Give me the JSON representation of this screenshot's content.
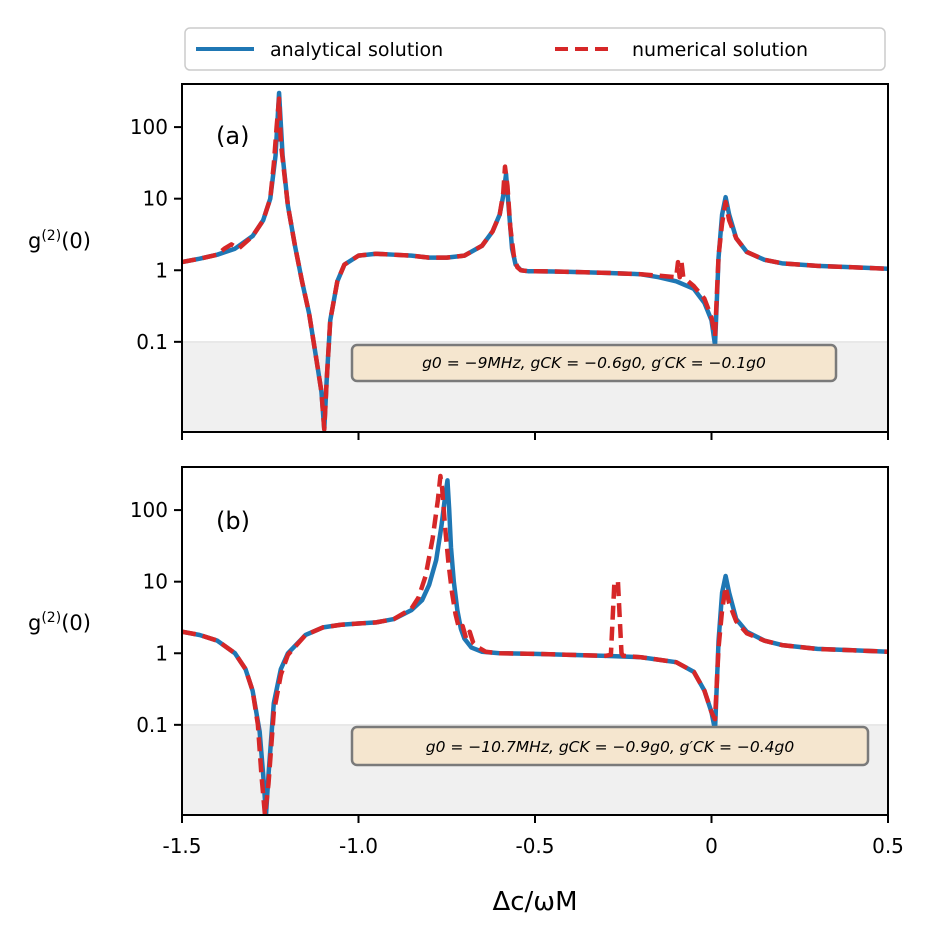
{
  "chart_data": {
    "type": "line",
    "xlabel": "Δc/ωM",
    "x_tick_labels": [
      "-1.5",
      "-1.0",
      "-0.5",
      "0",
      "0.5"
    ],
    "x_ticks": [
      -1.5,
      -1.0,
      -0.5,
      0.0,
      0.5
    ],
    "xlim": [
      -1.5,
      0.5
    ],
    "y_scale": "log",
    "ylim": [
      0.0055,
      400
    ],
    "y_ticks": [
      0.1,
      1,
      10,
      100
    ],
    "y_tick_labels": [
      "0.1",
      "1",
      "10",
      "100"
    ],
    "shaded_region_below": 0.1,
    "legend": [
      {
        "name": "analytical solution",
        "color": "#1f77b4",
        "style": "solid"
      },
      {
        "name": "numerical solution",
        "color": "#d62728",
        "style": "dashed"
      }
    ],
    "panels": [
      {
        "label": "(a)",
        "ylabel": "g(2)(0)",
        "annotation": "g0 = −9MHz, gCK = −0.6g0, g′CK = −0.1g0",
        "series": [
          {
            "name": "analytical solution",
            "x": [
              -1.5,
              -1.45,
              -1.4,
              -1.35,
              -1.3,
              -1.27,
              -1.25,
              -1.235,
              -1.225,
              -1.215,
              -1.2,
              -1.18,
              -1.16,
              -1.14,
              -1.12,
              -1.105,
              -1.097,
              -1.09,
              -1.08,
              -1.06,
              -1.04,
              -1.0,
              -0.95,
              -0.9,
              -0.85,
              -0.8,
              -0.75,
              -0.7,
              -0.65,
              -0.62,
              -0.6,
              -0.59,
              -0.582,
              -0.575,
              -0.565,
              -0.555,
              -0.54,
              -0.52,
              -0.5,
              -0.45,
              -0.4,
              -0.3,
              -0.2,
              -0.15,
              -0.1,
              -0.05,
              -0.02,
              0.0,
              0.01,
              0.02,
              0.03,
              0.04,
              0.05,
              0.07,
              0.1,
              0.15,
              0.2,
              0.3,
              0.4,
              0.5
            ],
            "y": [
              1.3,
              1.45,
              1.65,
              2.0,
              3.0,
              5.0,
              10.0,
              40.0,
              300.0,
              40.0,
              8.0,
              2.2,
              0.7,
              0.25,
              0.06,
              0.02,
              0.006,
              0.03,
              0.2,
              0.7,
              1.2,
              1.6,
              1.7,
              1.65,
              1.6,
              1.5,
              1.5,
              1.6,
              2.2,
              3.5,
              6.0,
              11.0,
              22.0,
              8.0,
              2.0,
              1.2,
              1.0,
              0.97,
              0.97,
              0.96,
              0.95,
              0.92,
              0.88,
              0.8,
              0.7,
              0.55,
              0.35,
              0.2,
              0.09,
              1.5,
              6.0,
              10.5,
              6.0,
              2.8,
              1.8,
              1.4,
              1.25,
              1.15,
              1.1,
              1.05
            ]
          },
          {
            "name": "numerical solution",
            "x": [
              -1.5,
              -1.45,
              -1.4,
              -1.38,
              -1.36,
              -1.34,
              -1.3,
              -1.27,
              -1.25,
              -1.24,
              -1.232,
              -1.225,
              -1.22,
              -1.2,
              -1.18,
              -1.16,
              -1.14,
              -1.12,
              -1.105,
              -1.097,
              -1.09,
              -1.08,
              -1.06,
              -1.04,
              -1.0,
              -0.95,
              -0.9,
              -0.85,
              -0.8,
              -0.75,
              -0.7,
              -0.65,
              -0.62,
              -0.6,
              -0.59,
              -0.585,
              -0.578,
              -0.57,
              -0.56,
              -0.55,
              -0.54,
              -0.52,
              -0.5,
              -0.45,
              -0.4,
              -0.3,
              -0.2,
              -0.1,
              -0.095,
              -0.09,
              -0.085,
              -0.08,
              -0.05,
              -0.02,
              0.0,
              0.01,
              0.02,
              0.03,
              0.04,
              0.05,
              0.07,
              0.1,
              0.15,
              0.2,
              0.3,
              0.4,
              0.5
            ],
            "y": [
              1.3,
              1.45,
              1.65,
              2.0,
              2.3,
              2.0,
              3.0,
              5.0,
              10.0,
              30.0,
              100.0,
              250.0,
              60.0,
              8.0,
              2.2,
              0.7,
              0.25,
              0.06,
              0.02,
              0.006,
              0.03,
              0.2,
              0.7,
              1.2,
              1.6,
              1.7,
              1.65,
              1.6,
              1.5,
              1.5,
              1.6,
              2.2,
              3.5,
              6.0,
              12.0,
              28.0,
              15.0,
              4.0,
              1.6,
              1.1,
              1.0,
              0.97,
              0.97,
              0.96,
              0.95,
              0.92,
              0.88,
              0.8,
              1.3,
              0.8,
              1.3,
              0.8,
              0.6,
              0.4,
              0.22,
              0.12,
              1.6,
              4.5,
              9.0,
              5.0,
              2.8,
              1.8,
              1.4,
              1.25,
              1.15,
              1.1,
              1.05
            ]
          }
        ]
      },
      {
        "label": "(b)",
        "ylabel": "g(2)(0)",
        "annotation": "g0 = −10.7MHz, gCK = −0.9g0, g′CK = −0.4g0",
        "series": [
          {
            "name": "analytical solution",
            "x": [
              -1.5,
              -1.45,
              -1.4,
              -1.35,
              -1.32,
              -1.3,
              -1.28,
              -1.27,
              -1.262,
              -1.255,
              -1.24,
              -1.22,
              -1.2,
              -1.15,
              -1.1,
              -1.05,
              -1.0,
              -0.95,
              -0.9,
              -0.85,
              -0.82,
              -0.8,
              -0.78,
              -0.765,
              -0.755,
              -0.748,
              -0.743,
              -0.738,
              -0.73,
              -0.72,
              -0.71,
              -0.7,
              -0.68,
              -0.65,
              -0.6,
              -0.5,
              -0.4,
              -0.3,
              -0.2,
              -0.1,
              -0.05,
              -0.02,
              0.0,
              0.01,
              0.02,
              0.03,
              0.04,
              0.05,
              0.07,
              0.1,
              0.15,
              0.2,
              0.3,
              0.4,
              0.5
            ],
            "y": [
              2.0,
              1.8,
              1.5,
              1.0,
              0.6,
              0.3,
              0.08,
              0.02,
              0.0055,
              0.02,
              0.2,
              0.6,
              1.0,
              1.8,
              2.3,
              2.5,
              2.6,
              2.7,
              3.0,
              4.0,
              5.5,
              9.0,
              20.0,
              60.0,
              150.0,
              260.0,
              100.0,
              30.0,
              10.0,
              4.0,
              2.2,
              1.6,
              1.2,
              1.05,
              1.0,
              0.98,
              0.95,
              0.92,
              0.88,
              0.75,
              0.55,
              0.3,
              0.15,
              0.085,
              1.5,
              7.0,
              12.0,
              7.0,
              3.0,
              2.0,
              1.5,
              1.3,
              1.15,
              1.1,
              1.05
            ]
          },
          {
            "name": "numerical solution",
            "x": [
              -1.5,
              -1.45,
              -1.4,
              -1.35,
              -1.32,
              -1.3,
              -1.285,
              -1.275,
              -1.265,
              -1.255,
              -1.24,
              -1.22,
              -1.2,
              -1.15,
              -1.1,
              -1.05,
              -1.0,
              -0.95,
              -0.9,
              -0.85,
              -0.83,
              -0.81,
              -0.79,
              -0.775,
              -0.768,
              -0.763,
              -0.755,
              -0.745,
              -0.735,
              -0.725,
              -0.715,
              -0.705,
              -0.695,
              -0.685,
              -0.675,
              -0.66,
              -0.64,
              -0.6,
              -0.5,
              -0.4,
              -0.3,
              -0.285,
              -0.275,
              -0.265,
              -0.255,
              -0.25,
              -0.2,
              -0.1,
              -0.05,
              -0.02,
              0.0,
              0.01,
              0.02,
              0.03,
              0.04,
              0.05,
              0.07,
              0.1,
              0.15,
              0.2,
              0.3,
              0.4,
              0.5
            ],
            "y": [
              2.0,
              1.8,
              1.5,
              1.0,
              0.6,
              0.3,
              0.1,
              0.02,
              0.0055,
              0.015,
              0.15,
              0.5,
              0.95,
              1.8,
              2.3,
              2.5,
              2.6,
              2.7,
              3.0,
              4.2,
              6.0,
              12.0,
              40.0,
              140.0,
              300.0,
              200.0,
              60.0,
              18.0,
              7.0,
              3.5,
              2.2,
              2.4,
              1.6,
              2.0,
              1.4,
              1.2,
              1.05,
              1.0,
              0.98,
              0.95,
              0.92,
              0.95,
              10.0,
              10.0,
              1.0,
              0.92,
              0.88,
              0.75,
              0.55,
              0.3,
              0.15,
              0.12,
              1.2,
              4.0,
              8.5,
              5.0,
              2.8,
              1.9,
              1.5,
              1.3,
              1.15,
              1.1,
              1.05
            ]
          }
        ]
      }
    ]
  }
}
